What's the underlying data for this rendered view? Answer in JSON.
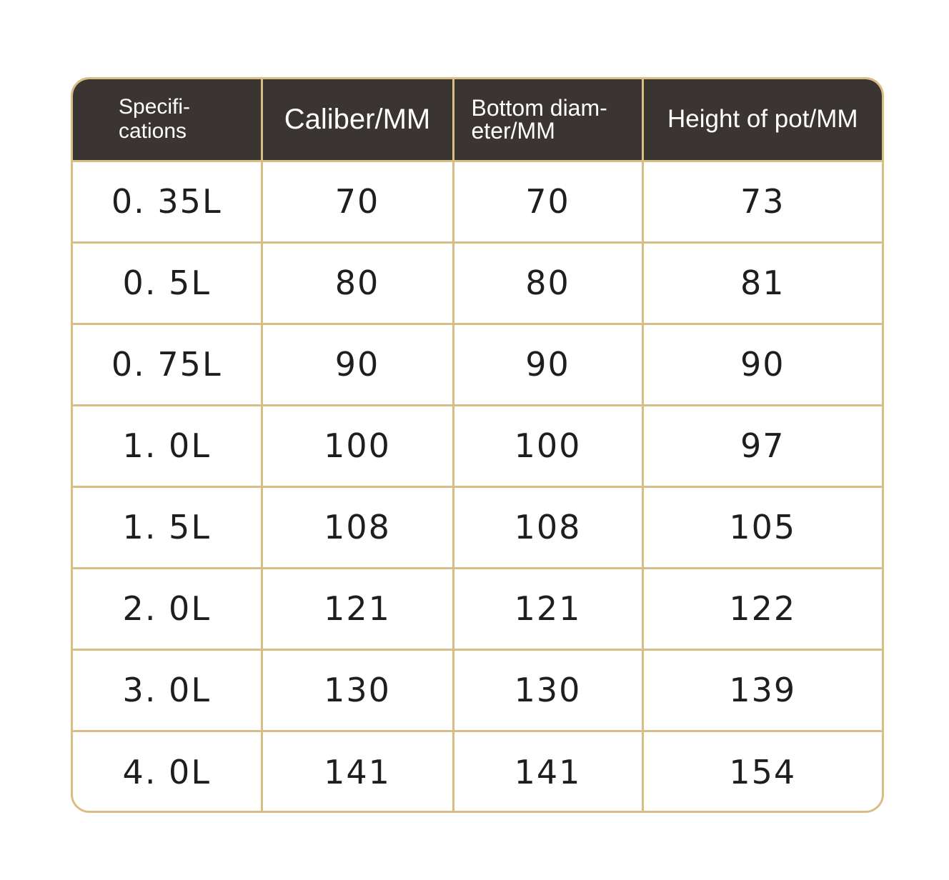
{
  "table": {
    "headers": [
      "Specifi-\ncations",
      "Caliber/MM",
      "Bottom diam-\neter/MM",
      "Height of pot/MM"
    ],
    "rows": [
      [
        "0. 35L",
        "70",
        "70",
        "73"
      ],
      [
        "0. 5L",
        "80",
        "80",
        "81"
      ],
      [
        "0. 75L",
        "90",
        "90",
        "90"
      ],
      [
        "1. 0L",
        "100",
        "100",
        "97"
      ],
      [
        "1. 5L",
        "108",
        "108",
        "105"
      ],
      [
        "2. 0L",
        "121",
        "121",
        "122"
      ],
      [
        "3. 0L",
        "130",
        "130",
        "139"
      ],
      [
        "4. 0L",
        "141",
        "141",
        "154"
      ]
    ]
  },
  "colors": {
    "header_background": "#3a3533",
    "header_text": "#ffffff",
    "border_gold": "#d8bd84",
    "cell_text": "#1e1e1e"
  }
}
